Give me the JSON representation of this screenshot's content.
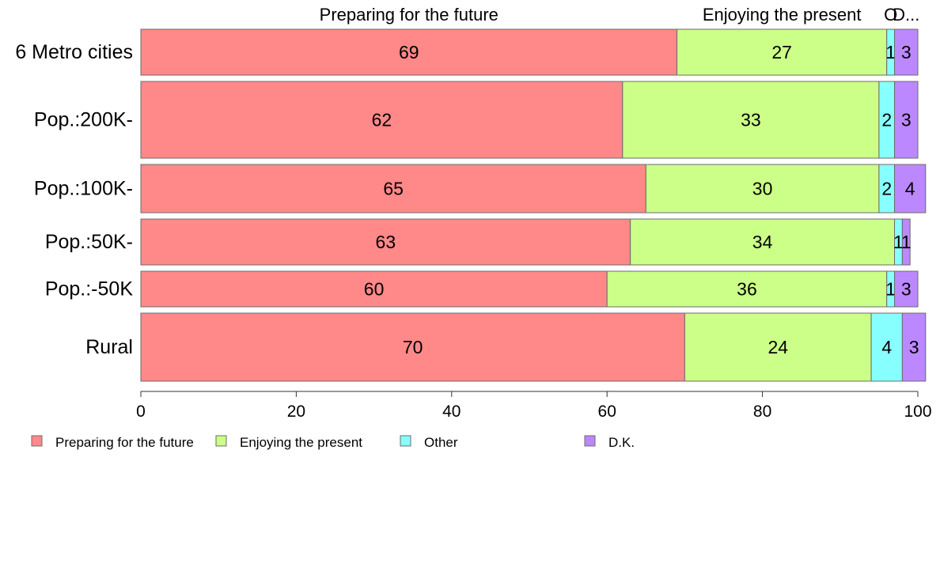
{
  "chart_data": {
    "type": "bar",
    "orientation": "horizontal",
    "stacked": true,
    "categories": [
      "6 Metro cities",
      "Pop.:200K-",
      "Pop.:100K-",
      "Pop.:50K-",
      "Pop.:-50K",
      "Rural"
    ],
    "series": [
      {
        "name": "Preparing for the future",
        "color": "#ff8888",
        "values": [
          69,
          62,
          65,
          63,
          60,
          70
        ]
      },
      {
        "name": "Enjoying the present",
        "color": "#ccff88",
        "values": [
          27,
          33,
          30,
          34,
          36,
          24
        ]
      },
      {
        "name": "Other",
        "color": "#88ffff",
        "values": [
          1,
          2,
          2,
          1,
          1,
          4
        ]
      },
      {
        "name": "D.K.",
        "color": "#bb88ff",
        "values": [
          3,
          3,
          4,
          1,
          3,
          3
        ]
      }
    ],
    "top_labels": [
      "Preparing for the future",
      "Enjoying the present",
      "O",
      "D..."
    ],
    "x_ticks": [
      0,
      20,
      40,
      60,
      80,
      100
    ],
    "xlim": [
      0,
      100
    ],
    "grid": false,
    "legend_position": "bottom-left"
  }
}
